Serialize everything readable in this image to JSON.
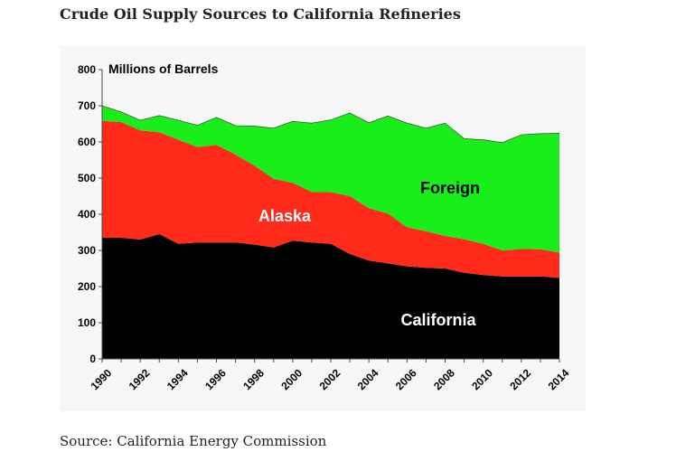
{
  "page": {
    "title": "Crude Oil Supply Sources to California Refineries",
    "source": "Source: California Energy Commission"
  },
  "chart_data": {
    "type": "area",
    "stacked": true,
    "units_label": "Millions of Barrels",
    "x": [
      1990,
      1991,
      1992,
      1993,
      1994,
      1995,
      1996,
      1997,
      1998,
      1999,
      2000,
      2001,
      2002,
      2003,
      2004,
      2005,
      2006,
      2007,
      2008,
      2009,
      2010,
      2011,
      2012,
      2013,
      2014
    ],
    "x_ticks": [
      "1990",
      "1992",
      "1994",
      "1996",
      "1998",
      "2000",
      "2002",
      "2004",
      "2006",
      "2008",
      "2010",
      "2012",
      "2014"
    ],
    "y_ticks": [
      "0",
      "100",
      "200",
      "300",
      "400",
      "500",
      "600",
      "700",
      "800"
    ],
    "ylim": [
      0,
      800
    ],
    "grid": false,
    "series": [
      {
        "name": "California",
        "color": "#000000",
        "values": [
          335,
          335,
          330,
          345,
          318,
          322,
          322,
          322,
          316,
          308,
          327,
          322,
          318,
          290,
          272,
          264,
          256,
          252,
          250,
          238,
          232,
          228,
          228,
          228,
          224
        ]
      },
      {
        "name": "Alaska",
        "color": "#ff2a1a",
        "values": [
          323,
          320,
          302,
          282,
          288,
          264,
          270,
          243,
          218,
          190,
          160,
          140,
          143,
          160,
          145,
          138,
          108,
          101,
          90,
          93,
          86,
          72,
          76,
          75,
          70
        ]
      },
      {
        "name": "Foreign",
        "color": "#1aee1a",
        "values": [
          42,
          28,
          28,
          46,
          54,
          60,
          76,
          80,
          110,
          140,
          170,
          190,
          200,
          230,
          236,
          270,
          288,
          285,
          312,
          278,
          288,
          298,
          316,
          320,
          330
        ]
      }
    ],
    "annotations": [
      "Foreign",
      "Alaska",
      "California"
    ]
  }
}
